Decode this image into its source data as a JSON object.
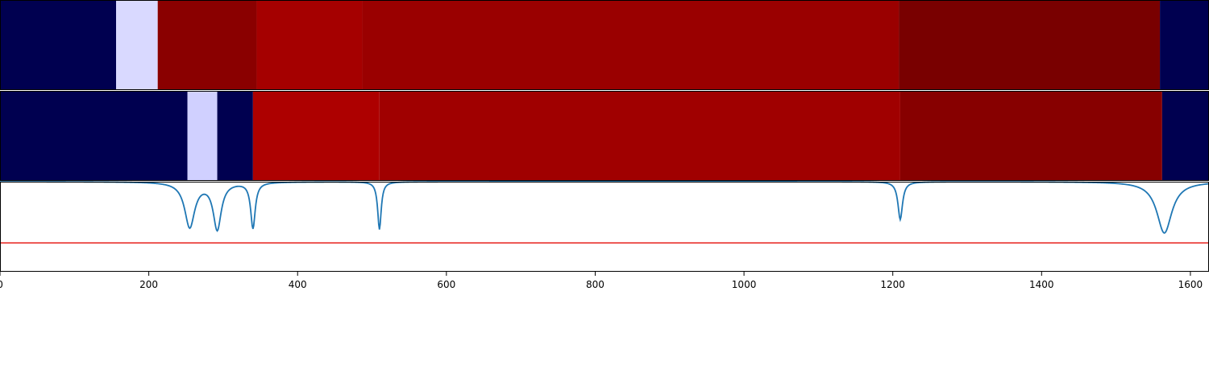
{
  "chart_data": {
    "type": "heatmap",
    "title": "",
    "xlabel": "",
    "ylabel": "",
    "xlim": [
      0,
      1625
    ],
    "x_ticks": [
      0,
      200,
      400,
      600,
      800,
      1000,
      1200,
      1400,
      1600
    ],
    "x_tick_labels": [
      "0",
      "200",
      "400",
      "600",
      "800",
      "1000",
      "1200",
      "1400",
      "1600"
    ],
    "grid": false,
    "legend": "none",
    "segment_tracks": [
      {
        "segments": [
          {
            "start": 0,
            "end": 156,
            "color": "#000050"
          },
          {
            "start": 156,
            "end": 212,
            "color": "#d9d9ff"
          },
          {
            "start": 212,
            "end": 345,
            "color": "#8a0000"
          },
          {
            "start": 345,
            "end": 487,
            "color": "#a50000"
          },
          {
            "start": 487,
            "end": 1208,
            "color": "#9a0000"
          },
          {
            "start": 1208,
            "end": 1559,
            "color": "#790000"
          },
          {
            "start": 1559,
            "end": 1625,
            "color": "#000050"
          }
        ]
      },
      {
        "segments": [
          {
            "start": 0,
            "end": 252,
            "color": "#000050"
          },
          {
            "start": 252,
            "end": 292,
            "color": "#d0d0ff"
          },
          {
            "start": 292,
            "end": 340,
            "color": "#000050"
          },
          {
            "start": 340,
            "end": 510,
            "color": "#ad0000"
          },
          {
            "start": 510,
            "end": 1210,
            "color": "#a00000"
          },
          {
            "start": 1210,
            "end": 1562,
            "color": "#870000"
          },
          {
            "start": 1562,
            "end": 1625,
            "color": "#000050"
          }
        ]
      }
    ],
    "signal_panel": {
      "ylim": [
        0,
        1
      ],
      "baseline": 1.0,
      "threshold": 0.32,
      "threshold_color": "#e8201c",
      "line_color": "#1f77b4",
      "dips": [
        {
          "center": 255,
          "width": 20,
          "depth": 0.5
        },
        {
          "center": 292,
          "width": 16,
          "depth": 0.52
        },
        {
          "center": 340,
          "width": 9,
          "depth": 0.51
        },
        {
          "center": 510,
          "width": 7,
          "depth": 0.53
        },
        {
          "center": 1210,
          "width": 9,
          "depth": 0.42
        },
        {
          "center": 1565,
          "width": 30,
          "depth": 0.57
        }
      ]
    }
  }
}
